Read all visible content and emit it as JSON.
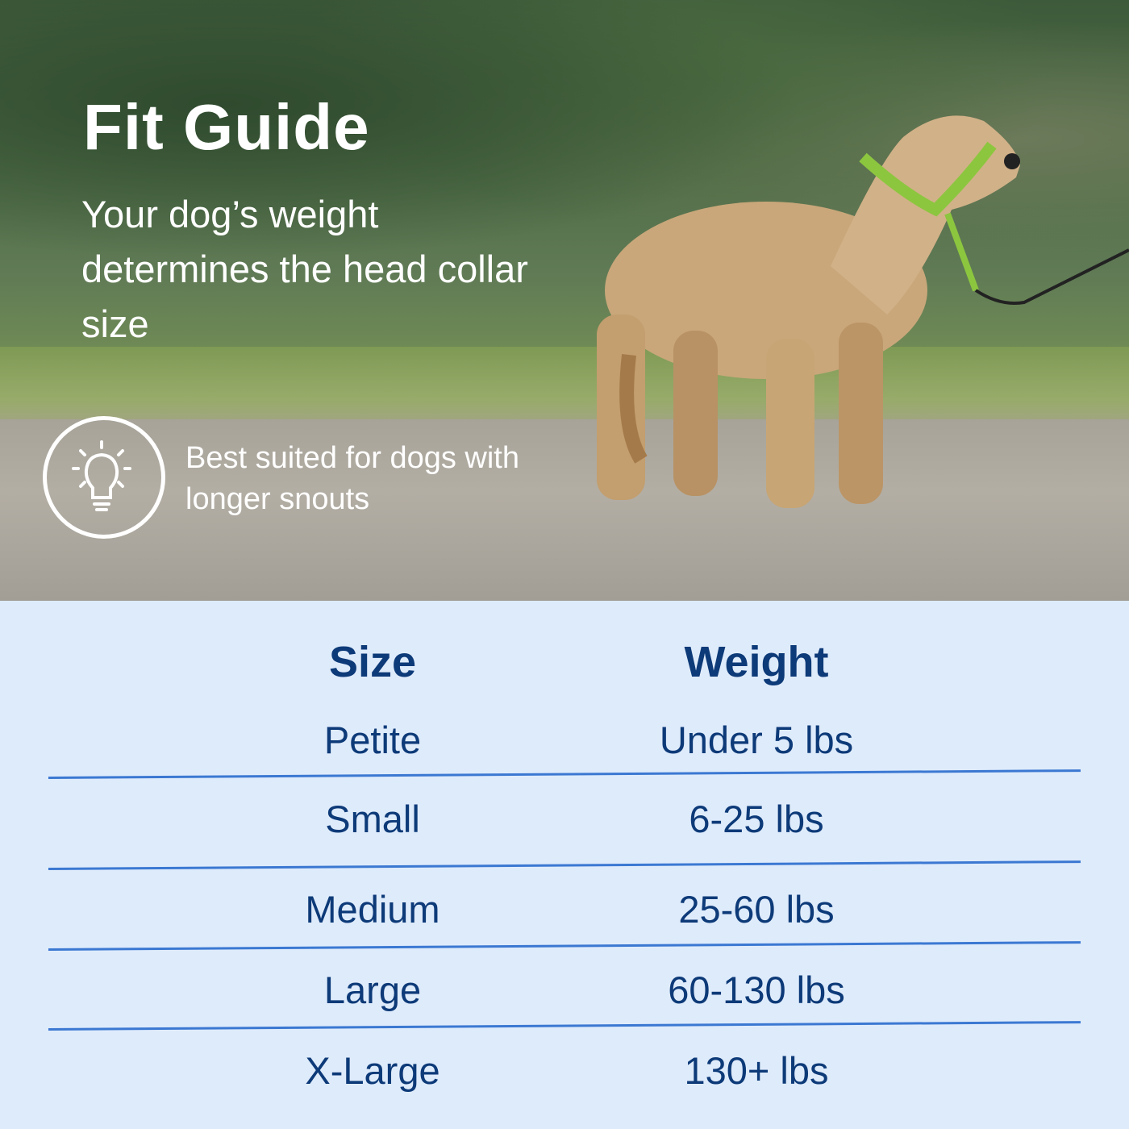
{
  "hero": {
    "title": "Fit Guide",
    "subtitle": "Your dog’s weight determines the head collar size",
    "tip": {
      "icon": "lightbulb-icon",
      "text": "Best suited for dogs with longer snouts"
    }
  },
  "table": {
    "headers": [
      "Size",
      "Weight"
    ],
    "rows": [
      {
        "size": "Petite",
        "weight": "Under 5 lbs"
      },
      {
        "size": "Small",
        "weight": "6-25 lbs"
      },
      {
        "size": "Medium",
        "weight": "25-60 lbs"
      },
      {
        "size": "Large",
        "weight": "60-130 lbs"
      },
      {
        "size": "X-Large",
        "weight": "130+ lbs"
      }
    ]
  },
  "colors": {
    "text": "#0d3a78",
    "divider": "#3b78d2",
    "panel": "#deebfb",
    "collar": "#8cc63f"
  }
}
